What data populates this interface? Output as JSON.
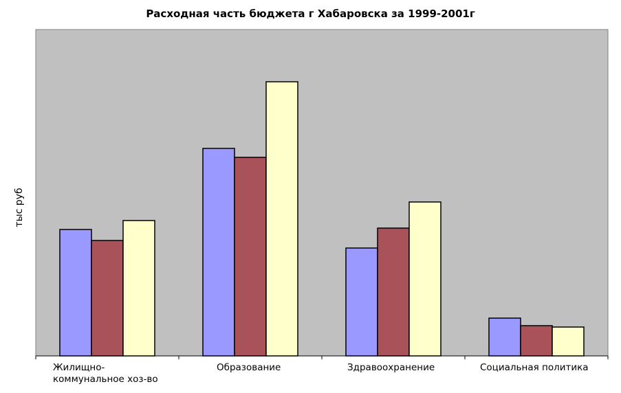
{
  "chart_data": {
    "type": "bar",
    "title": "Расходная часть бюджета г Хабаровска за 1999-2001г",
    "xlabel": "",
    "ylabel": "тыс руб",
    "categories": [
      [
        "Жилищно-",
        "коммунальное хоз-во"
      ],
      [
        "Образование"
      ],
      [
        "Здравоохранение"
      ],
      [
        "Социальная политика"
      ]
    ],
    "series": [
      {
        "color": "#9999ff",
        "values": [
          184,
          302,
          157,
          55
        ]
      },
      {
        "color": "#a9525a",
        "values": [
          168,
          289,
          186,
          44
        ]
      },
      {
        "color": "#ffffcc",
        "values": [
          197,
          399,
          224,
          42
        ]
      }
    ],
    "ylim": [
      0,
      475
    ],
    "grid": false,
    "legend": "none",
    "plot_background": "#c0c0c0"
  }
}
